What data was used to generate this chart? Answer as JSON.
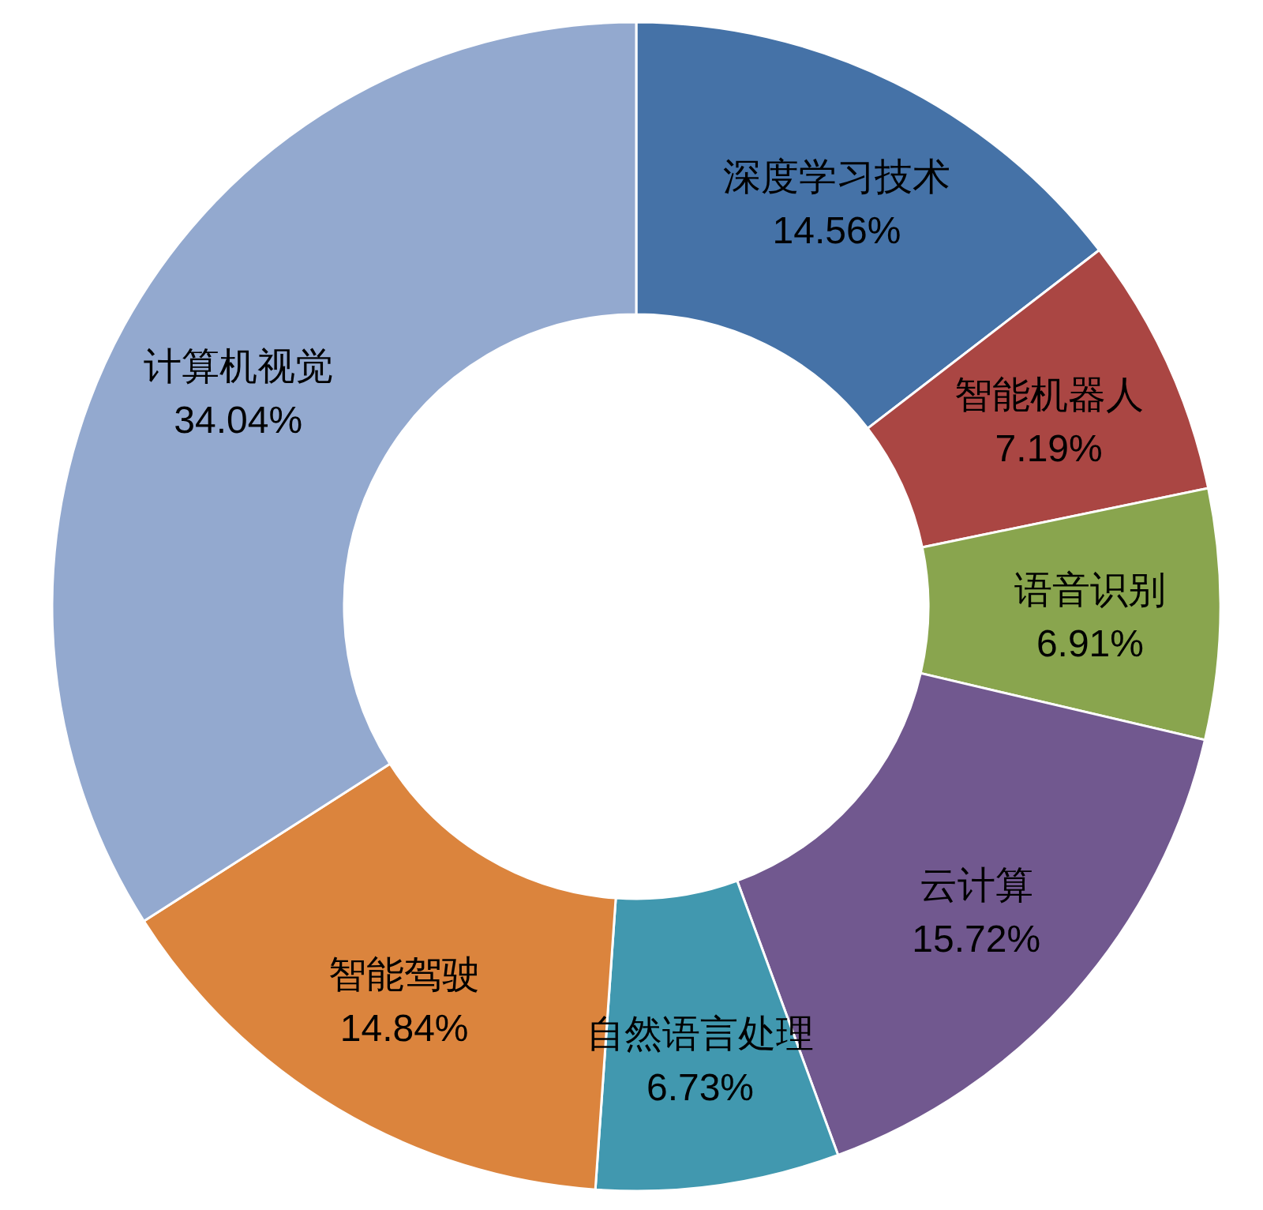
{
  "chart_data": {
    "type": "donut",
    "categories": [
      "深度学习技术",
      "智能机器人",
      "语音识别",
      "云计算",
      "自然语言处理",
      "智能驾驶",
      "计算机视觉"
    ],
    "values": [
      14.56,
      7.19,
      6.91,
      15.72,
      6.73,
      14.84,
      34.04
    ],
    "colors": [
      "#4572a7",
      "#aa4643",
      "#89a54e",
      "#71588f",
      "#4198af",
      "#db843d",
      "#93a9cf"
    ],
    "value_labels": [
      "14.56%",
      "7.19%",
      "6.91%",
      "15.72%",
      "6.73%",
      "14.84%",
      "34.04%"
    ]
  }
}
